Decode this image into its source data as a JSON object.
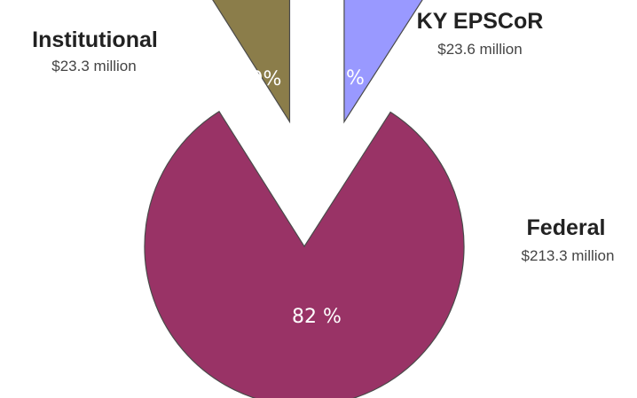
{
  "chart_data": {
    "type": "pie",
    "title": "",
    "slices": [
      {
        "name": "KY EPSCoR",
        "amount": "$23.6 million",
        "value": 23.6,
        "percent_label": "9 %",
        "color": "#9999ff"
      },
      {
        "name": "Federal",
        "amount": "$213.3 million",
        "value": 213.3,
        "percent_label": "82 %",
        "color": "#993366"
      },
      {
        "name": "Institutional",
        "amount": "$23.3 million",
        "value": 23.3,
        "percent_label": "9%",
        "color": "#8b7d4a"
      }
    ],
    "slice_stroke": "#4a4a4a",
    "exploded": true,
    "legend": "none"
  }
}
